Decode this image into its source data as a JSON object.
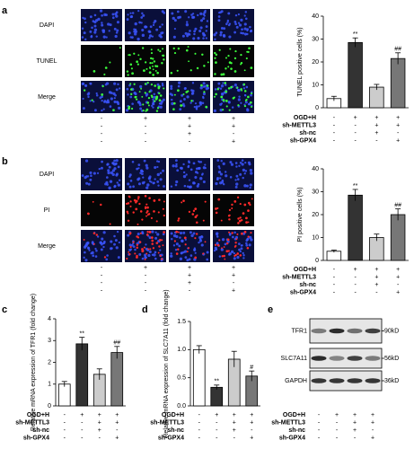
{
  "panel_labels": [
    "a",
    "b",
    "c",
    "d",
    "e"
  ],
  "conditions": [
    {
      "name": "OGD+H",
      "signs": [
        "-",
        "+",
        "+",
        "+"
      ]
    },
    {
      "name": "sh-METTL3",
      "signs": [
        "-",
        "-",
        "+",
        "+"
      ]
    },
    {
      "name": "sh-nc",
      "signs": [
        "-",
        "-",
        "+",
        "-"
      ]
    },
    {
      "name": "sh-GPX4",
      "signs": [
        "-",
        "-",
        "-",
        "+"
      ]
    }
  ],
  "image_rows": [
    [
      "DAPI",
      "TUNEL",
      "Merge"
    ],
    [
      "DAPI",
      "PI",
      "Merge"
    ]
  ],
  "blot": {
    "proteins": [
      "TFR1",
      "SLC7A11",
      "GAPDH"
    ],
    "sizes": [
      "90kD",
      "56kD",
      "36kD"
    ]
  },
  "chart_data": [
    {
      "type": "bar",
      "ylabel": "TUNEL positive cells (%)",
      "values": [
        4,
        28.5,
        9,
        21.5
      ],
      "errors": [
        1,
        2,
        1.2,
        2.5
      ],
      "annotations": [
        null,
        "**",
        null,
        "##"
      ],
      "colors": [
        "#ffffff",
        "#333333",
        "#cccccc",
        "#777777"
      ],
      "ylim": [
        0,
        40
      ],
      "yticks": [
        0,
        10,
        20,
        30,
        40
      ]
    },
    {
      "type": "bar",
      "ylabel": "PI positive cells (%)",
      "values": [
        4,
        28.5,
        10,
        20
      ],
      "errors": [
        0.5,
        2.5,
        1.5,
        2.5
      ],
      "annotations": [
        null,
        "**",
        null,
        "##"
      ],
      "colors": [
        "#ffffff",
        "#333333",
        "#cccccc",
        "#777777"
      ],
      "ylim": [
        0,
        40
      ],
      "yticks": [
        0,
        10,
        20,
        30,
        40
      ]
    },
    {
      "type": "bar",
      "ylabel": "Relative mRNA expression of TFR1 (fold change)",
      "values": [
        1.0,
        2.85,
        1.45,
        2.45
      ],
      "errors": [
        0.12,
        0.3,
        0.25,
        0.28
      ],
      "annotations": [
        null,
        "**",
        null,
        "##"
      ],
      "colors": [
        "#ffffff",
        "#333333",
        "#cccccc",
        "#777777"
      ],
      "ylim": [
        0,
        4
      ],
      "yticks": [
        0,
        1,
        2,
        3,
        4
      ]
    },
    {
      "type": "bar",
      "ylabel": "Relative mRNA expression of SLC7A11 (fold change)",
      "values": [
        1.0,
        0.33,
        0.83,
        0.53
      ],
      "errors": [
        0.07,
        0.04,
        0.14,
        0.09
      ],
      "annotations": [
        null,
        "**",
        null,
        "#"
      ],
      "colors": [
        "#ffffff",
        "#333333",
        "#cccccc",
        "#777777"
      ],
      "ylim": [
        0,
        1.5
      ],
      "yticks": [
        {
          "value": 0,
          "label": "0.0"
        },
        0.5,
        {
          "value": 1,
          "label": "1.0"
        },
        1.5
      ]
    }
  ]
}
